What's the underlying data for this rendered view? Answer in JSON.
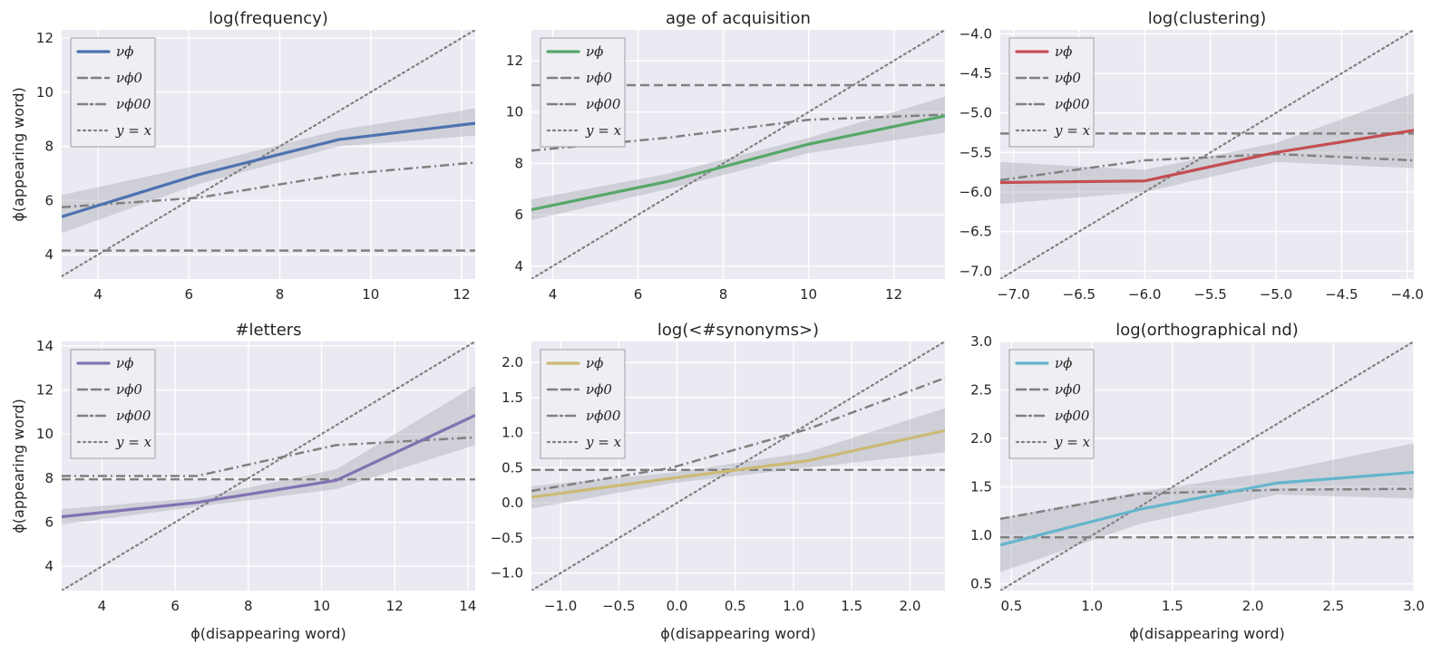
{
  "figure": {
    "ylabel": "ϕ(appearing word)",
    "xlabel": "ϕ(disappearing word)"
  },
  "legend_labels": [
    "νϕ",
    "νϕ0",
    "νϕ00",
    "y = x"
  ],
  "colors": {
    "background": "#EAEAF2",
    "grid": "#FFFFFF",
    "reference": "#808080",
    "band": "#B0B0B8"
  },
  "chart_data": [
    {
      "type": "line",
      "title": "log(frequency)",
      "color": "#4C72B0",
      "xlim": [
        3.2,
        12.3
      ],
      "ylim": [
        3.1,
        12.3
      ],
      "xticks": [
        "4",
        "6",
        "8",
        "10",
        "12"
      ],
      "xtick_values": [
        4,
        6,
        8,
        10,
        12
      ],
      "yticks": [
        "4",
        "6",
        "8",
        "10",
        "12"
      ],
      "ytick_values": [
        4,
        6,
        8,
        10,
        12
      ],
      "nu": {
        "x": [
          3.2,
          6.2,
          9.3,
          12.3
        ],
        "y": [
          5.4,
          6.95,
          8.25,
          8.85
        ]
      },
      "band": {
        "x": [
          3.2,
          6.2,
          9.3,
          12.3
        ],
        "lo": [
          4.8,
          6.6,
          8.0,
          8.4
        ],
        "hi": [
          6.2,
          7.3,
          8.6,
          9.4
        ]
      },
      "nu0": 4.15,
      "nu00": {
        "x": [
          3.2,
          6.2,
          9.3,
          12.3
        ],
        "y": [
          5.75,
          6.1,
          6.95,
          7.4
        ]
      }
    },
    {
      "type": "line",
      "title": "age of acquisition",
      "color": "#55A868",
      "xlim": [
        3.5,
        13.2
      ],
      "ylim": [
        3.5,
        13.2
      ],
      "xticks": [
        "4",
        "6",
        "8",
        "10",
        "12"
      ],
      "xtick_values": [
        4,
        6,
        8,
        10,
        12
      ],
      "yticks": [
        "4",
        "6",
        "8",
        "10",
        "12"
      ],
      "ytick_values": [
        4,
        6,
        8,
        10,
        12
      ],
      "nu": {
        "x": [
          3.5,
          6.7,
          10.0,
          13.2
        ],
        "y": [
          6.2,
          7.3,
          8.75,
          9.85
        ]
      },
      "band": {
        "x": [
          3.5,
          6.7,
          10.0,
          13.2
        ],
        "lo": [
          5.8,
          7.0,
          8.4,
          9.2
        ],
        "hi": [
          6.6,
          7.6,
          9.0,
          10.6
        ]
      },
      "nu0": 11.05,
      "nu00": {
        "x": [
          3.5,
          6.7,
          10.0,
          13.2
        ],
        "y": [
          8.5,
          9.0,
          9.7,
          9.9
        ]
      }
    },
    {
      "type": "line",
      "title": "log(clustering)",
      "color": "#C44E52",
      "xlim": [
        -7.1,
        -3.95
      ],
      "ylim": [
        -7.1,
        -3.95
      ],
      "xticks": [
        "−7.0",
        "−6.5",
        "−6.0",
        "−5.5",
        "−5.0",
        "−4.5",
        "−4.0"
      ],
      "xtick_values": [
        -7.0,
        -6.5,
        -6.0,
        -5.5,
        -5.0,
        -4.5,
        -4.0
      ],
      "yticks": [
        "−7.0",
        "−6.5",
        "−6.0",
        "−5.5",
        "−5.0",
        "−4.5",
        "−4.0"
      ],
      "ytick_values": [
        -7.0,
        -6.5,
        -6.0,
        -5.5,
        -5.0,
        -4.5,
        -4.0
      ],
      "nu": {
        "x": [
          -7.1,
          -6.0,
          -5.0,
          -3.95
        ],
        "y": [
          -5.88,
          -5.86,
          -5.5,
          -5.22
        ]
      },
      "band": {
        "x": [
          -7.1,
          -6.0,
          -5.0,
          -3.95
        ],
        "lo": [
          -6.15,
          -6.0,
          -5.62,
          -5.7
        ],
        "hi": [
          -5.62,
          -5.72,
          -5.38,
          -4.75
        ]
      },
      "nu0": -5.26,
      "nu00": {
        "x": [
          -7.1,
          -6.0,
          -5.0,
          -3.95
        ],
        "y": [
          -5.85,
          -5.6,
          -5.52,
          -5.6
        ]
      }
    },
    {
      "type": "line",
      "title": "#letters",
      "color": "#8172B2",
      "xlim": [
        2.9,
        14.2
      ],
      "ylim": [
        2.9,
        14.2
      ],
      "xticks": [
        "4",
        "6",
        "8",
        "10",
        "12",
        "14"
      ],
      "xtick_values": [
        4,
        6,
        8,
        10,
        12,
        14
      ],
      "yticks": [
        "4",
        "6",
        "8",
        "10",
        "12",
        "14"
      ],
      "ytick_values": [
        4,
        6,
        8,
        10,
        12,
        14
      ],
      "nu": {
        "x": [
          2.9,
          6.6,
          10.4,
          14.2
        ],
        "y": [
          6.25,
          6.9,
          7.9,
          10.85
        ]
      },
      "band": {
        "x": [
          2.9,
          6.6,
          10.4,
          14.2
        ],
        "lo": [
          5.9,
          6.7,
          7.5,
          9.5
        ],
        "hi": [
          6.6,
          7.1,
          8.4,
          12.2
        ]
      },
      "nu0": 7.95,
      "nu00": {
        "x": [
          2.9,
          6.6,
          10.4,
          14.2
        ],
        "y": [
          8.1,
          8.1,
          9.5,
          9.85
        ]
      }
    },
    {
      "type": "line",
      "title": "log(<#synonyms>)",
      "color": "#CCB974",
      "xlim": [
        -1.25,
        2.3
      ],
      "ylim": [
        -1.25,
        2.3
      ],
      "xticks": [
        "−1.0",
        "−0.5",
        "0.0",
        "0.5",
        "1.0",
        "1.5",
        "2.0"
      ],
      "xtick_values": [
        -1.0,
        -0.5,
        0.0,
        0.5,
        1.0,
        1.5,
        2.0
      ],
      "yticks": [
        "−1.0",
        "−0.5",
        "0.0",
        "0.5",
        "1.0",
        "1.5",
        "2.0"
      ],
      "ytick_values": [
        -1.0,
        -0.5,
        0.0,
        0.5,
        1.0,
        1.5,
        2.0
      ],
      "nu": {
        "x": [
          -1.25,
          -0.05,
          1.12,
          2.3
        ],
        "y": [
          0.08,
          0.35,
          0.6,
          1.03
        ]
      },
      "band": {
        "x": [
          -1.25,
          -0.05,
          1.12,
          2.3
        ],
        "lo": [
          -0.08,
          0.28,
          0.5,
          0.72
        ],
        "hi": [
          0.24,
          0.43,
          0.72,
          1.35
        ]
      },
      "nu0": 0.47,
      "nu00": {
        "x": [
          -1.25,
          -0.05,
          1.12,
          2.3
        ],
        "y": [
          0.17,
          0.5,
          1.05,
          1.78
        ]
      }
    },
    {
      "type": "line",
      "title": "log(orthographical nd)",
      "color": "#64B5CD",
      "xlim": [
        0.43,
        3.0
      ],
      "ylim": [
        0.43,
        3.0
      ],
      "xticks": [
        "0.5",
        "1.0",
        "1.5",
        "2.0",
        "2.5",
        "3.0"
      ],
      "xtick_values": [
        0.5,
        1.0,
        1.5,
        2.0,
        2.5,
        3.0
      ],
      "yticks": [
        "0.5",
        "1.0",
        "1.5",
        "2.0",
        "2.5",
        "3.0"
      ],
      "ytick_values": [
        0.5,
        1.0,
        1.5,
        2.0,
        2.5,
        3.0
      ],
      "nu": {
        "x": [
          0.43,
          1.3,
          2.15,
          3.0
        ],
        "y": [
          0.9,
          1.27,
          1.54,
          1.65
        ]
      },
      "band": {
        "x": [
          0.43,
          1.3,
          2.15,
          3.0
        ],
        "lo": [
          0.62,
          1.12,
          1.42,
          1.38
        ],
        "hi": [
          1.18,
          1.45,
          1.66,
          1.95
        ]
      },
      "nu0": 0.98,
      "nu00": {
        "x": [
          0.43,
          1.3,
          2.15,
          3.0
        ],
        "y": [
          1.17,
          1.43,
          1.47,
          1.48
        ]
      }
    }
  ]
}
